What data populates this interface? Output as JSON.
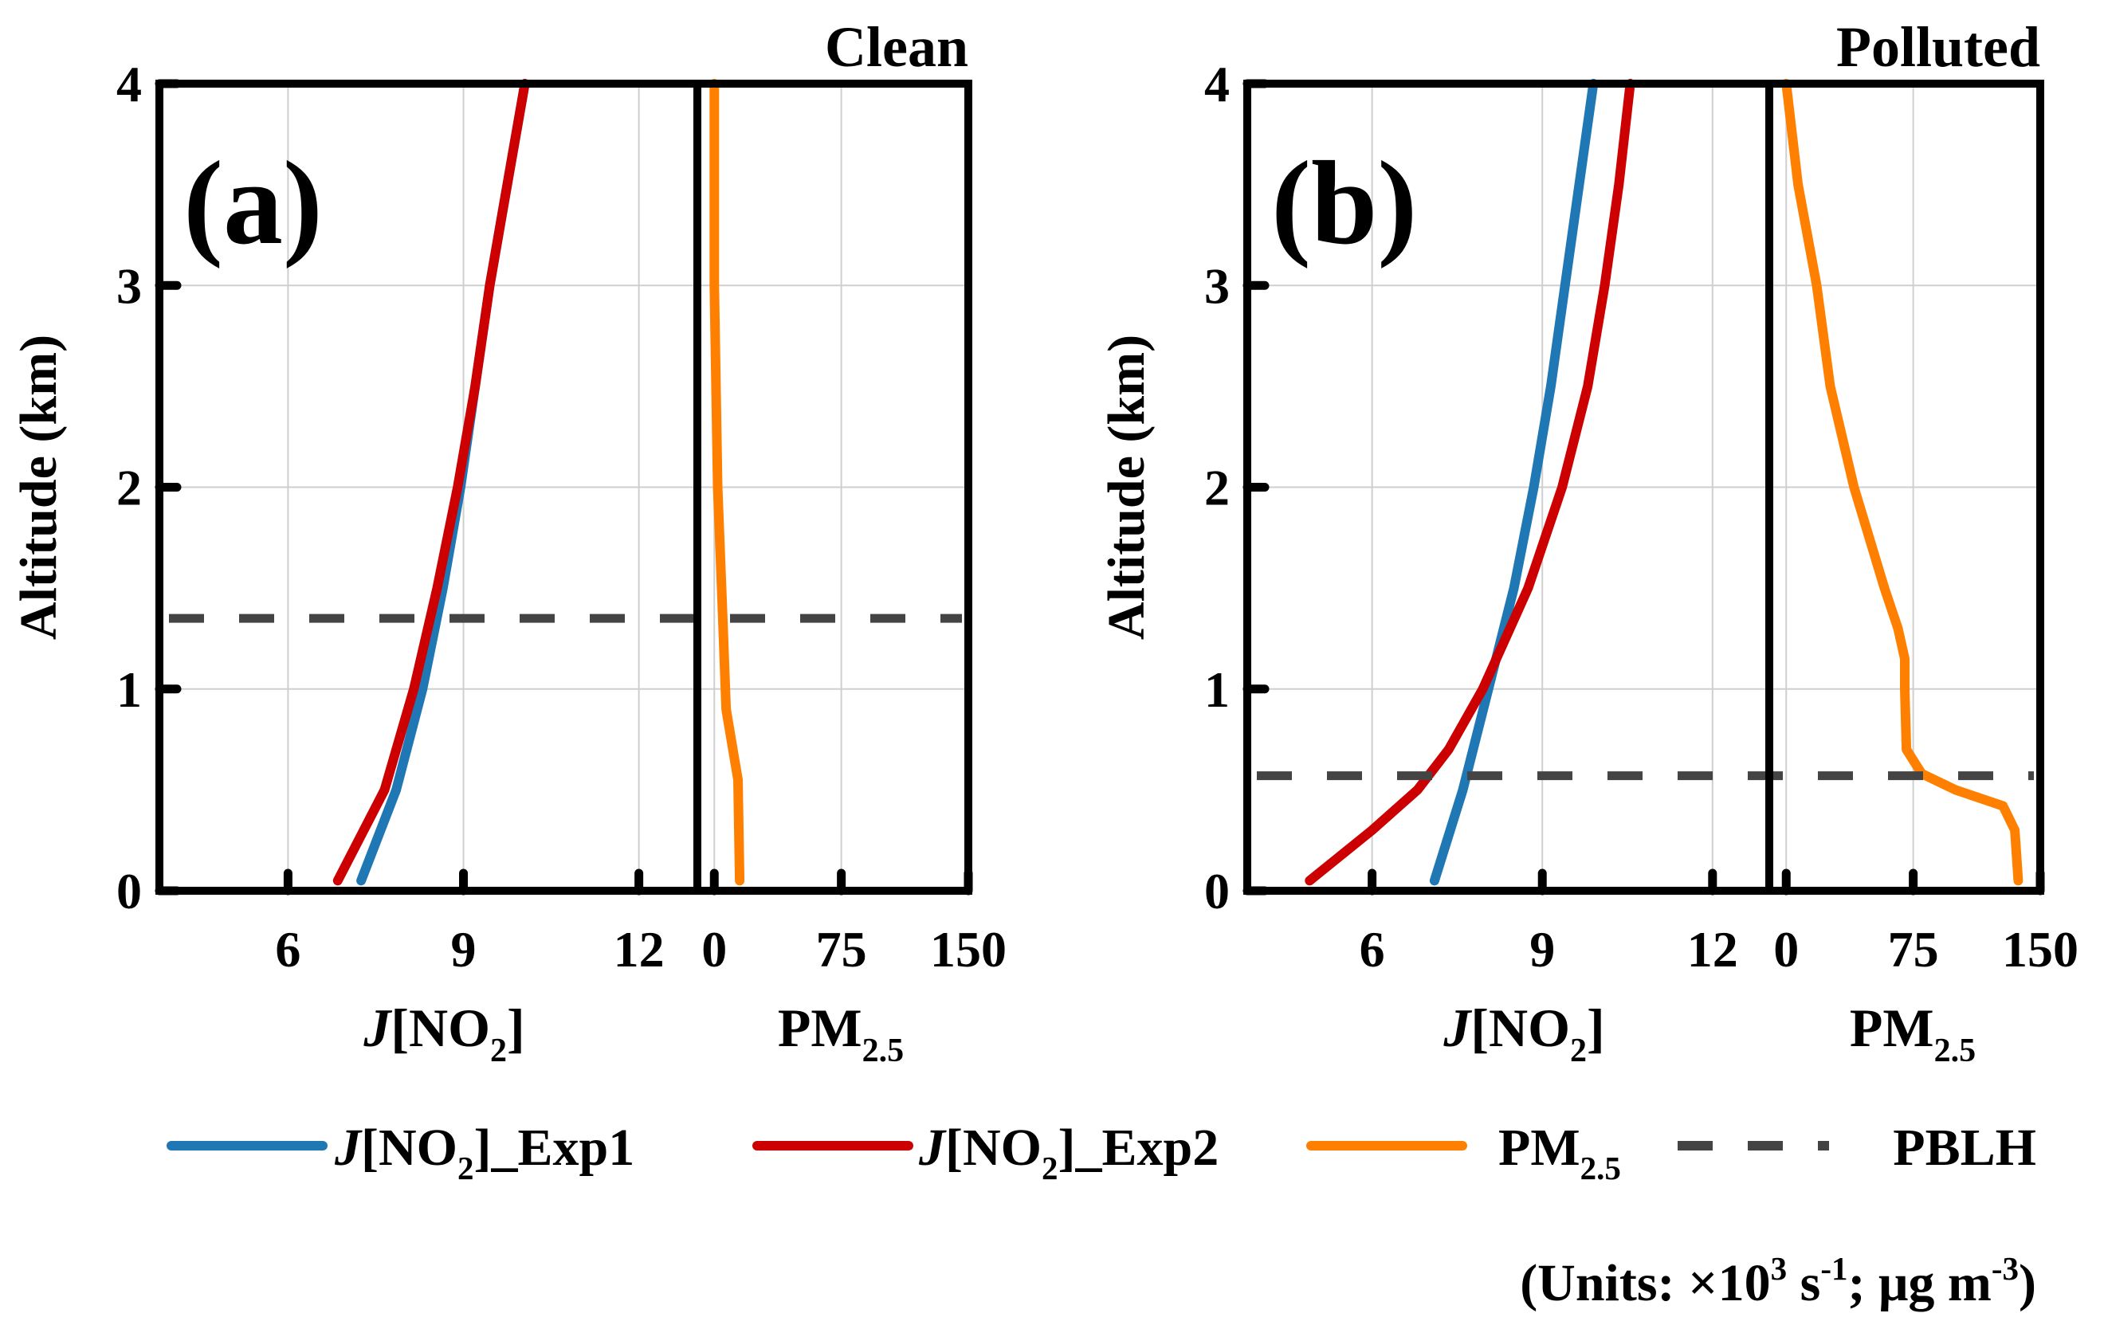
{
  "colors": {
    "exp1": "#1f77b4",
    "exp2": "#cc0000",
    "pm25": "#ff8000",
    "pblh": "#444444",
    "grid": "#cfcfcf",
    "axis": "#000000"
  },
  "legend": {
    "exp1": {
      "italic": "J",
      "main": "[NO",
      "sub": "2",
      "rest": "]_Exp1"
    },
    "exp2": {
      "italic": "J",
      "main": "[NO",
      "sub": "2",
      "rest": "]_Exp2"
    },
    "pm25": {
      "main": "PM",
      "sub": "2.5"
    },
    "pblh": "PBLH"
  },
  "units": {
    "open": "(Units: ×10",
    "sup1": "3",
    "mid1": " s",
    "sup2": "-1",
    "mid2": "; μg m",
    "sup3": "-3",
    "close": ")"
  },
  "chart_data": [
    {
      "type": "line",
      "panel": "(a)",
      "condition": "Clean",
      "ylabel": "Altitude (km)",
      "ylim": [
        0,
        4
      ],
      "yticks": [
        0,
        1,
        2,
        3,
        4
      ],
      "grid": true,
      "j_panel": {
        "xlabel": {
          "italic": "J",
          "main": "[NO",
          "sub": "2",
          "close": "]"
        },
        "xlim": [
          3.8,
          13.0
        ],
        "xticks": [
          6,
          9,
          12
        ],
        "series": [
          {
            "name": "J[NO2]_Exp1",
            "color_key": "exp1",
            "y": [
              0.05,
              0.5,
              1.0,
              1.5,
              2.0,
              2.5,
              3.0,
              3.5,
              4.0
            ],
            "x": [
              7.25,
              7.85,
              8.3,
              8.65,
              8.95,
              9.2,
              9.45,
              9.75,
              10.05
            ]
          },
          {
            "name": "J[NO2]_Exp2",
            "color_key": "exp2",
            "y": [
              0.05,
              0.5,
              1.0,
              1.5,
              2.0,
              2.5,
              3.0,
              3.5,
              4.0
            ],
            "x": [
              6.85,
              7.65,
              8.15,
              8.55,
              8.9,
              9.2,
              9.45,
              9.75,
              10.05
            ]
          }
        ]
      },
      "pm_panel": {
        "xlabel": {
          "main": "PM",
          "sub": "2.5"
        },
        "xlim": [
          -10,
          150
        ],
        "xticks": [
          0,
          75,
          150
        ],
        "series": [
          {
            "name": "PM2.5",
            "color_key": "pm25",
            "y": [
              0.05,
              0.55,
              0.7,
              0.9,
              1.35,
              2.0,
              3.0,
              4.0
            ],
            "x": [
              15,
              14,
              11,
              7,
              5,
              2,
              0,
              0
            ]
          }
        ]
      },
      "pblh": 1.35
    },
    {
      "type": "line",
      "panel": "(b)",
      "condition": "Polluted",
      "ylabel": "Altitude (km)",
      "ylim": [
        0,
        4
      ],
      "yticks": [
        0,
        1,
        2,
        3,
        4
      ],
      "grid": true,
      "j_panel": {
        "xlabel": {
          "italic": "J",
          "main": "[NO",
          "sub": "2",
          "close": "]"
        },
        "xlim": [
          3.8,
          13.0
        ],
        "xticks": [
          6,
          9,
          12
        ],
        "series": [
          {
            "name": "J[NO2]_Exp1",
            "color_key": "exp1",
            "y": [
              0.05,
              0.5,
              1.0,
              1.5,
              2.0,
              2.5,
              3.0,
              3.5,
              4.0
            ],
            "x": [
              7.1,
              7.6,
              8.05,
              8.5,
              8.85,
              9.15,
              9.4,
              9.65,
              9.9
            ]
          },
          {
            "name": "J[NO2]_Exp2",
            "color_key": "exp2",
            "y": [
              0.05,
              0.3,
              0.5,
              0.7,
              1.0,
              1.5,
              2.0,
              2.5,
              3.0,
              3.5,
              4.0
            ],
            "x": [
              4.9,
              6.0,
              6.8,
              7.35,
              7.95,
              8.75,
              9.35,
              9.8,
              10.1,
              10.35,
              10.55
            ]
          }
        ]
      },
      "pm_panel": {
        "xlabel": {
          "main": "PM",
          "sub": "2.5"
        },
        "xlim": [
          -10,
          150
        ],
        "xticks": [
          0,
          75,
          150
        ],
        "series": [
          {
            "name": "PM2.5",
            "color_key": "pm25",
            "y": [
              0.05,
              0.3,
              0.42,
              0.5,
              0.58,
              0.7,
              1.0,
              1.15,
              1.3,
              1.5,
              2.0,
              2.5,
              3.0,
              3.5,
              4.0
            ],
            "x": [
              137,
              135,
              128,
              100,
              80,
              71,
              70,
              70,
              66,
              58,
              40,
              26,
              18,
              7,
              0
            ]
          }
        ]
      },
      "pblh": 0.57
    }
  ]
}
